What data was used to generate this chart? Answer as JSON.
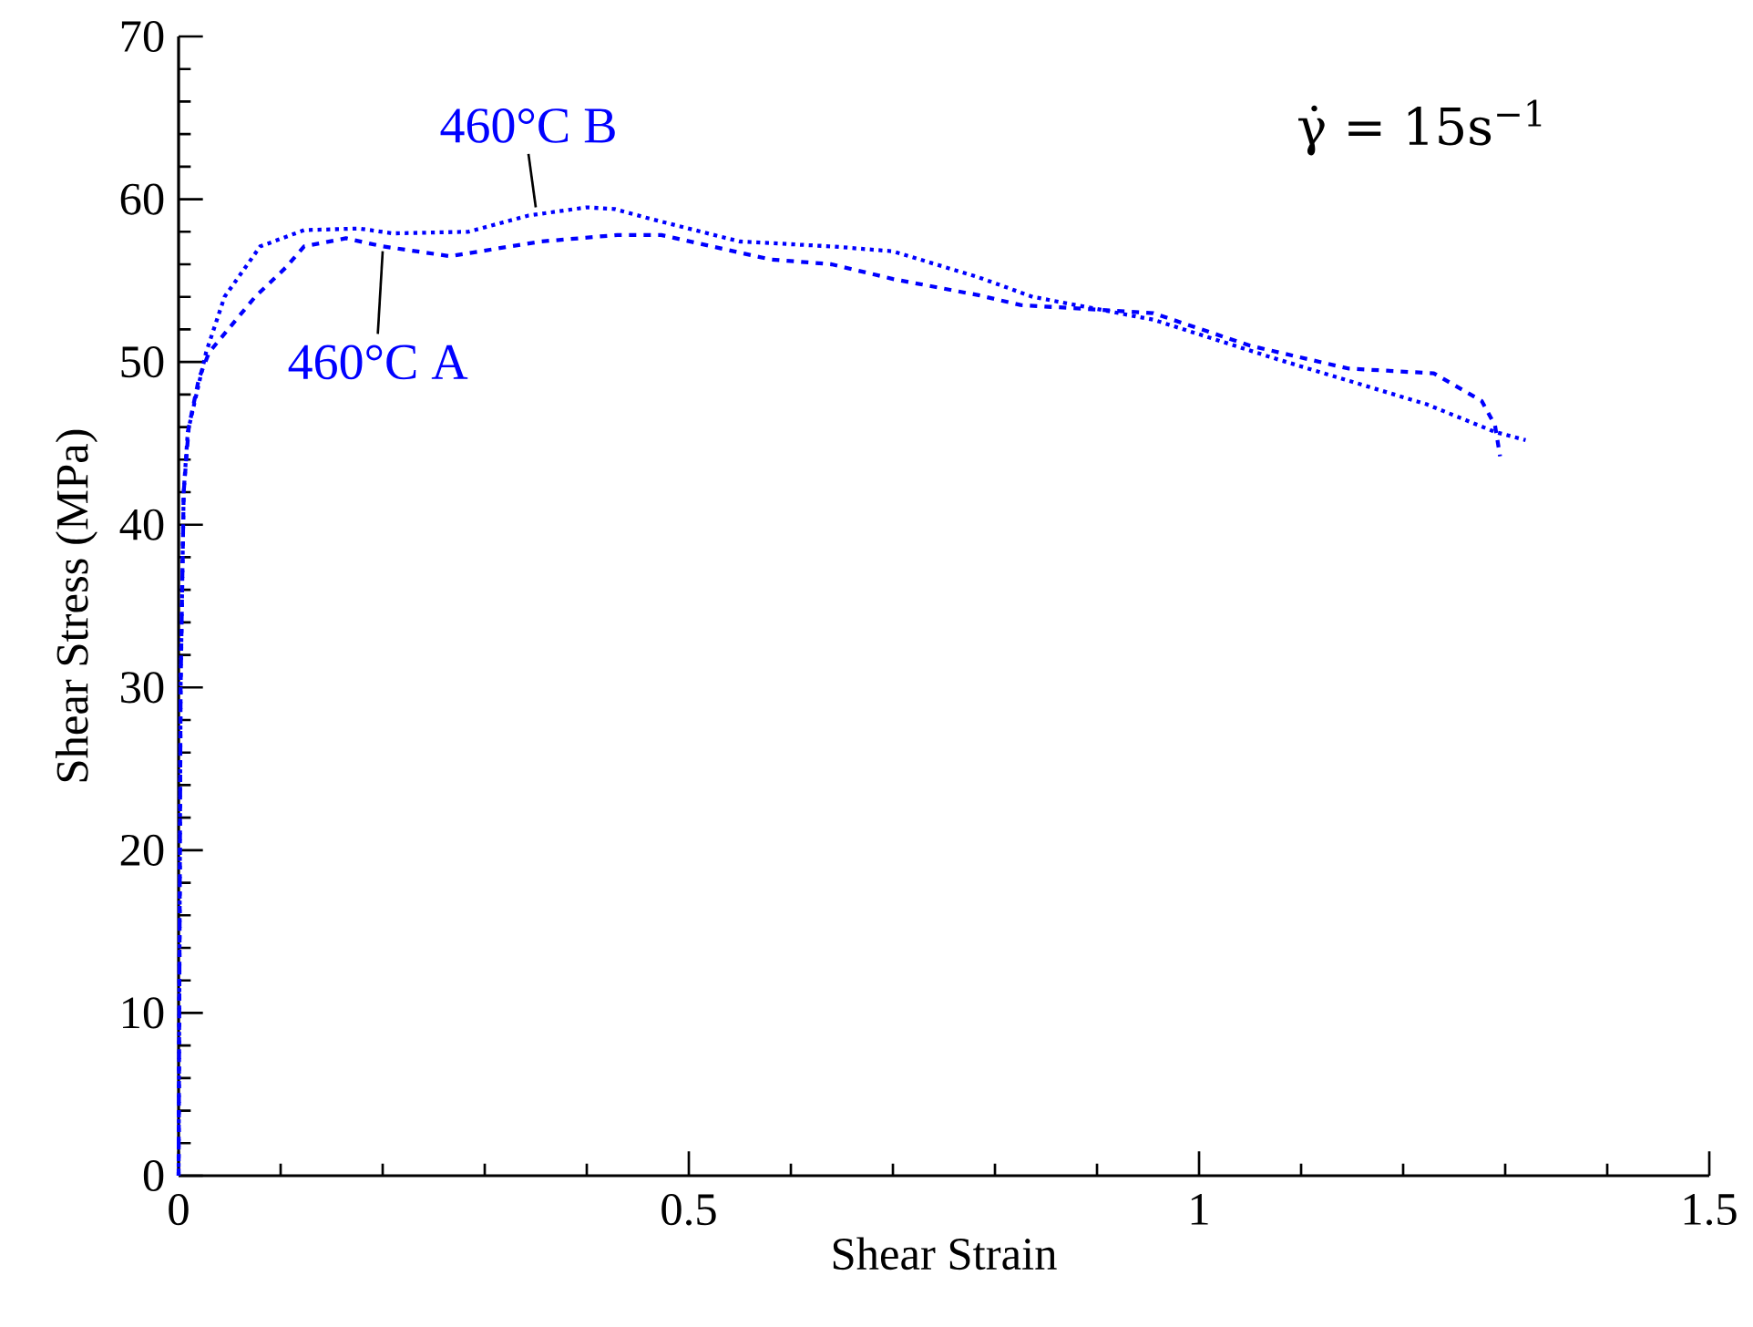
{
  "chart_data": {
    "type": "line",
    "xlabel": "Shear Strain",
    "ylabel": "Shear Stress (MPa)",
    "xlim": [
      0,
      1.5
    ],
    "ylim": [
      0,
      70
    ],
    "xticks": [
      0,
      0.5,
      1,
      1.5
    ],
    "yticks": [
      0,
      10,
      20,
      30,
      40,
      50,
      60,
      70
    ],
    "grid": false,
    "series": [
      {
        "color": "#0000ff",
        "line_style": "dashed",
        "x": [
          0,
          0.002,
          0.005,
          0.01,
          0.02,
          0.03,
          0.075,
          0.105,
          0.123,
          0.164,
          0.2,
          0.266,
          0.355,
          0.43,
          0.473,
          0.58,
          0.64,
          0.7,
          0.784,
          0.825,
          0.955,
          1.05,
          1.146,
          1.23,
          1.277,
          1.29,
          1.295
        ],
        "values": [
          0,
          30,
          42,
          46,
          49,
          50.6,
          54,
          55.8,
          57.1,
          57.6,
          57.1,
          56.5,
          57.4,
          57.8,
          57.8,
          56.3,
          56,
          55.1,
          54.1,
          53.5,
          53,
          51,
          49.6,
          49.3,
          47.6,
          46.1,
          44.2
        ]
      },
      {
        "color": "#0000ff",
        "line_style": "dotted",
        "x": [
          0,
          0.002,
          0.005,
          0.009,
          0.027,
          0.045,
          0.08,
          0.123,
          0.177,
          0.21,
          0.284,
          0.343,
          0.4,
          0.427,
          0.462,
          0.55,
          0.64,
          0.7,
          0.784,
          0.837,
          0.955,
          1.075,
          1.223,
          1.29,
          1.32
        ],
        "values": [
          0,
          30,
          42,
          45.7,
          50.6,
          54,
          57.1,
          58.1,
          58.2,
          57.9,
          58,
          59,
          59.5,
          59.4,
          58.8,
          57.4,
          57.1,
          56.8,
          55.2,
          54,
          52.6,
          50.2,
          47.4,
          45.7,
          45.2
        ]
      }
    ],
    "annotations": [
      {
        "text": "460°C B",
        "x": 0.35,
        "y": 59.2
      },
      {
        "text": "460°C A",
        "x": 0.2,
        "y": 57.1
      },
      "γ̇ = 15s$^{−1}$"
    ]
  }
}
